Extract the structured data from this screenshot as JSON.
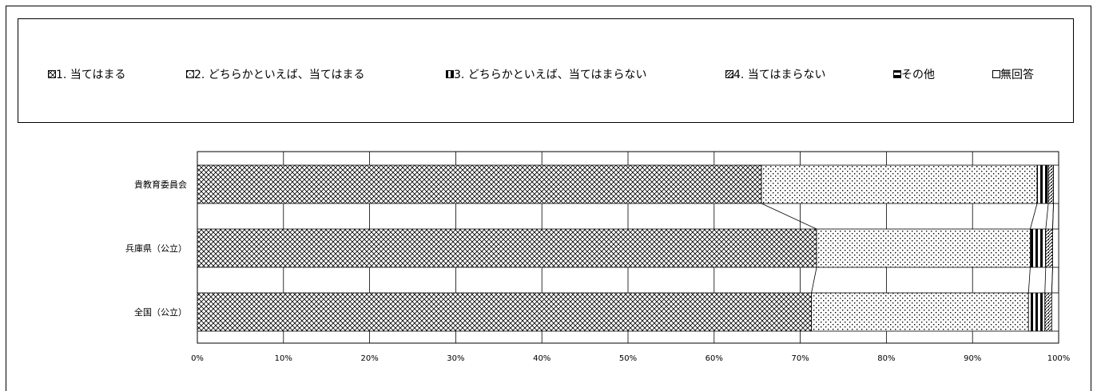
{
  "legend": [
    {
      "label": "1. 当てはまる",
      "pattern": "p1"
    },
    {
      "label": "2. どちらかといえば、当てはまる",
      "pattern": "p2"
    },
    {
      "label": "3. どちらかといえば、当てはまらない",
      "pattern": "p3"
    },
    {
      "label": "4. 当てはまらない",
      "pattern": "p4"
    },
    {
      "label": "その他",
      "pattern": "p5"
    },
    {
      "label": "無回答",
      "pattern": "p6"
    }
  ],
  "chart_data": {
    "type": "bar",
    "orientation": "horizontal",
    "stacked": "100%",
    "categories": [
      "貴教育委員会",
      "兵庫県（公立）",
      "全国（公立）"
    ],
    "series": [
      {
        "name": "1. 当てはまる",
        "values": [
          65.5,
          71.9,
          71.3
        ]
      },
      {
        "name": "2. どちらかといえば、当てはまる",
        "values": [
          32.0,
          24.8,
          25.2
        ]
      },
      {
        "name": "3. どちらかといえば、当てはまらない",
        "values": [
          1.3,
          1.8,
          1.9
        ]
      },
      {
        "name": "4. 当てはまらない",
        "values": [
          0.6,
          0.8,
          0.8
        ]
      },
      {
        "name": "その他",
        "values": [
          0.0,
          0.0,
          0.0
        ]
      },
      {
        "name": "無回答",
        "values": [
          0.6,
          0.7,
          0.8
        ]
      }
    ],
    "x_ticks": [
      "0%",
      "10%",
      "20%",
      "30%",
      "40%",
      "50%",
      "60%",
      "70%",
      "80%",
      "90%",
      "100%"
    ],
    "xlim": [
      0,
      100
    ],
    "grid": true,
    "series_lines": true,
    "legend_position": "top"
  }
}
